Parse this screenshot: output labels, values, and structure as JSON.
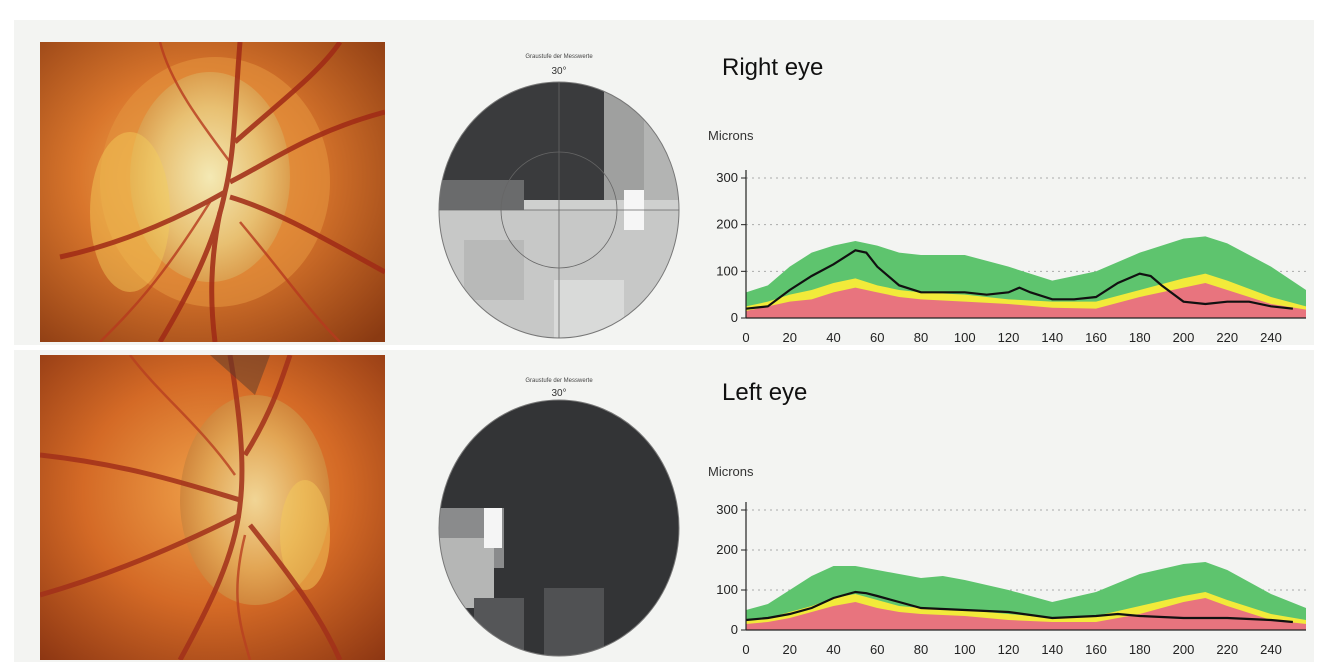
{
  "eyes": [
    {
      "id": "right",
      "title": "Right eye",
      "field_title": "Graustufe der Messwerte",
      "field_degree": "30°",
      "chart_data": {
        "type": "area",
        "ylabel": "Microns",
        "yticks": [
          0,
          100,
          200,
          300
        ],
        "xticks": [
          0,
          20,
          40,
          60,
          80,
          100,
          120,
          140,
          160,
          180,
          200,
          220,
          240
        ],
        "xlim": [
          0,
          256
        ],
        "ylim": [
          0,
          300
        ],
        "grid": "dotted horizontal",
        "bands": [
          {
            "color": "#e8747e",
            "x": [
              0,
              10,
              20,
              30,
              40,
              50,
              60,
              70,
              80,
              100,
              120,
              140,
              160,
              180,
              200,
              210,
              220,
              240,
              256
            ],
            "y": [
              15,
              25,
              35,
              40,
              55,
              65,
              55,
              45,
              40,
              35,
              30,
              22,
              20,
              45,
              65,
              75,
              60,
              30,
              18
            ]
          },
          {
            "color": "#f2ea3a",
            "x": [
              0,
              10,
              20,
              30,
              40,
              50,
              60,
              70,
              80,
              100,
              120,
              140,
              160,
              180,
              200,
              210,
              220,
              240,
              256
            ],
            "y": [
              25,
              35,
              50,
              60,
              75,
              85,
              70,
              60,
              55,
              50,
              40,
              35,
              35,
              60,
              85,
              95,
              80,
              45,
              25
            ]
          },
          {
            "color": "#5ec46e",
            "x": [
              0,
              10,
              20,
              30,
              40,
              50,
              60,
              70,
              80,
              100,
              120,
              140,
              160,
              180,
              200,
              210,
              220,
              240,
              256
            ],
            "y": [
              55,
              70,
              110,
              140,
              155,
              165,
              155,
              140,
              135,
              135,
              110,
              80,
              100,
              140,
              170,
              175,
              160,
              110,
              60
            ]
          }
        ],
        "series": [
          {
            "color": "#111111",
            "x": [
              0,
              10,
              20,
              30,
              40,
              50,
              55,
              60,
              70,
              80,
              100,
              110,
              120,
              125,
              130,
              140,
              150,
              160,
              170,
              180,
              185,
              190,
              200,
              210,
              220,
              230,
              240,
              250
            ],
            "y": [
              20,
              25,
              60,
              90,
              115,
              145,
              140,
              110,
              70,
              55,
              55,
              50,
              55,
              65,
              55,
              40,
              40,
              45,
              75,
              95,
              90,
              70,
              35,
              30,
              35,
              35,
              25,
              20
            ]
          }
        ]
      }
    },
    {
      "id": "left",
      "title": "Left eye",
      "field_title": "Graustufe der Messwerte",
      "field_degree": "30°",
      "chart_data": {
        "type": "area",
        "ylabel": "Microns",
        "yticks": [
          0,
          100,
          200,
          300
        ],
        "xticks": [
          0,
          20,
          40,
          60,
          80,
          100,
          120,
          140,
          160,
          180,
          200,
          220,
          240
        ],
        "xlim": [
          0,
          256
        ],
        "ylim": [
          0,
          300
        ],
        "grid": "dotted horizontal",
        "bands": [
          {
            "color": "#e8747e",
            "x": [
              0,
              10,
              20,
              30,
              40,
              50,
              60,
              70,
              80,
              100,
              120,
              140,
              160,
              180,
              200,
              210,
              220,
              240,
              256
            ],
            "y": [
              15,
              20,
              30,
              45,
              60,
              70,
              55,
              45,
              40,
              35,
              25,
              20,
              20,
              40,
              70,
              80,
              60,
              25,
              15
            ]
          },
          {
            "color": "#f2ea3a",
            "x": [
              0,
              10,
              20,
              30,
              40,
              50,
              60,
              70,
              80,
              100,
              120,
              140,
              160,
              180,
              200,
              210,
              220,
              240,
              256
            ],
            "y": [
              25,
              30,
              45,
              60,
              80,
              90,
              75,
              60,
              55,
              50,
              40,
              30,
              35,
              60,
              85,
              95,
              75,
              40,
              25
            ]
          },
          {
            "color": "#5ec46e",
            "x": [
              0,
              10,
              20,
              30,
              40,
              50,
              60,
              70,
              80,
              90,
              100,
              120,
              140,
              160,
              180,
              200,
              210,
              220,
              240,
              256
            ],
            "y": [
              50,
              65,
              100,
              135,
              160,
              160,
              150,
              140,
              130,
              135,
              125,
              100,
              70,
              95,
              140,
              165,
              170,
              150,
              90,
              55
            ]
          }
        ],
        "series": [
          {
            "color": "#111111",
            "x": [
              0,
              10,
              20,
              30,
              40,
              50,
              55,
              60,
              70,
              80,
              100,
              120,
              140,
              160,
              170,
              180,
              200,
              220,
              240,
              250
            ],
            "y": [
              25,
              30,
              40,
              55,
              80,
              95,
              92,
              85,
              70,
              55,
              50,
              45,
              30,
              35,
              40,
              35,
              30,
              30,
              25,
              20
            ]
          }
        ]
      }
    }
  ]
}
